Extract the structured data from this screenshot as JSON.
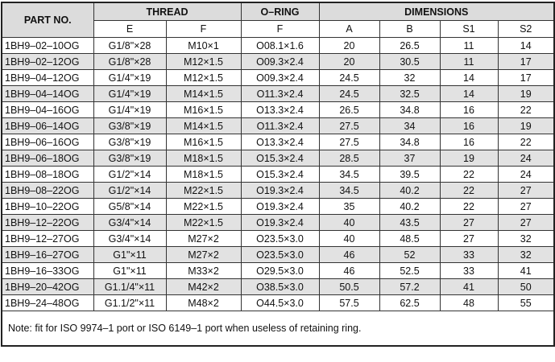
{
  "table": {
    "header": [
      "PART NO.",
      "THREAD",
      "O–RING",
      "DIMENSIONS"
    ],
    "subheader": [
      "E",
      "F",
      "F",
      "A",
      "B",
      "S1",
      "S2"
    ],
    "rows": [
      [
        "1BH9–02–10OG",
        "G1/8\"×28",
        "M10×1",
        "O08.1×1.6",
        20,
        26.5,
        11,
        14
      ],
      [
        "1BH9–02–12OG",
        "G1/8\"×28",
        "M12×1.5",
        "O09.3×2.4",
        20,
        30.5,
        11,
        17
      ],
      [
        "1BH9–04–12OG",
        "G1/4\"×19",
        "M12×1.5",
        "O09.3×2.4",
        24.5,
        32,
        14,
        17
      ],
      [
        "1BH9–04–14OG",
        "G1/4\"×19",
        "M14×1.5",
        "O11.3×2.4",
        24.5,
        32.5,
        14,
        19
      ],
      [
        "1BH9–04–16OG",
        "G1/4\"×19",
        "M16×1.5",
        "O13.3×2.4",
        26.5,
        34.8,
        16,
        22
      ],
      [
        "1BH9–06–14OG",
        "G3/8\"×19",
        "M14×1.5",
        "O11.3×2.4",
        27.5,
        34,
        16,
        19
      ],
      [
        "1BH9–06–16OG",
        "G3/8\"×19",
        "M16×1.5",
        "O13.3×2.4",
        27.5,
        34.8,
        16,
        22
      ],
      [
        "1BH9–06–18OG",
        "G3/8\"×19",
        "M18×1.5",
        "O15.3×2.4",
        28.5,
        37,
        19,
        24
      ],
      [
        "1BH9–08–18OG",
        "G1/2\"×14",
        "M18×1.5",
        "O15.3×2.4",
        34.5,
        39.5,
        22,
        24
      ],
      [
        "1BH9–08–22OG",
        "G1/2\"×14",
        "M22×1.5",
        "O19.3×2.4",
        34.5,
        40.2,
        22,
        27
      ],
      [
        "1BH9–10–22OG",
        "G5/8\"×14",
        "M22×1.5",
        "O19.3×2.4",
        35,
        40.2,
        22,
        27
      ],
      [
        "1BH9–12–22OG",
        "G3/4\"×14",
        "M22×1.5",
        "O19.3×2.4",
        40,
        43.5,
        27,
        27
      ],
      [
        "1BH9–12–27OG",
        "G3/4\"×14",
        "M27×2",
        "O23.5×3.0",
        40,
        48.5,
        27,
        32
      ],
      [
        "1BH9–16–27OG",
        "G1\"×11",
        "M27×2",
        "O23.5×3.0",
        46,
        52,
        33,
        32
      ],
      [
        "1BH9–16–33OG",
        "G1\"×11",
        "M33×2",
        "O29.5×3.0",
        46,
        52.5,
        33,
        41
      ],
      [
        "1BH9–20–42OG",
        "G1.1/4\"×11",
        "M42×2",
        "O38.5×3.0",
        50.5,
        57.2,
        41,
        50
      ],
      [
        "1BH9–24–48OG",
        "G1.1/2\"×11",
        "M48×2",
        "O44.5×3.0",
        57.5,
        62.5,
        48,
        55
      ]
    ],
    "note": "Note: fit for ISO 9974–1 port or ISO 6149–1 port when useless of retaining ring."
  }
}
